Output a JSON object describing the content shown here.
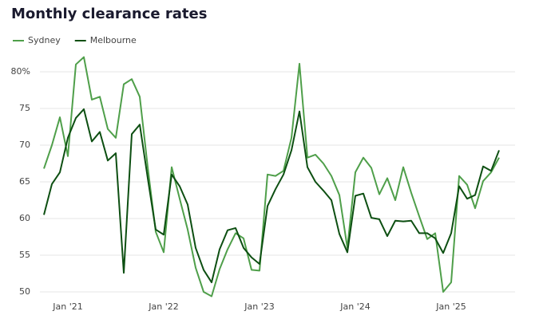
{
  "chart_data": {
    "type": "line",
    "title": "Monthly clearance rates",
    "categories": [
      null,
      null,
      null,
      "Jan '21",
      null,
      null,
      null,
      null,
      null,
      null,
      null,
      null,
      null,
      null,
      null,
      "Jan '22",
      null,
      null,
      null,
      null,
      null,
      null,
      null,
      null,
      null,
      null,
      null,
      "Jan '23",
      null,
      null,
      null,
      null,
      null,
      null,
      null,
      null,
      null,
      null,
      null,
      "Jan '24",
      null,
      null,
      null,
      null,
      null,
      null,
      null,
      null,
      null,
      null,
      null,
      "Jan '25",
      null,
      null,
      null,
      null,
      null,
      null
    ],
    "series": [
      {
        "name": "Sydney",
        "color": "#4f9f4a",
        "values": [
          66.8,
          70,
          73.8,
          68.5,
          81,
          82,
          76.2,
          76.6,
          72.2,
          71,
          78.3,
          79,
          76.6,
          67,
          58.2,
          55.4,
          67,
          62.7,
          58.5,
          53.3,
          50,
          49.4,
          53.1,
          55.8,
          58,
          57.3,
          53,
          52.9,
          66,
          65.8,
          66.5,
          71,
          81.1,
          68.3,
          68.7,
          67.5,
          65.8,
          63.2,
          56,
          66.3,
          68.3,
          66.9,
          63.3,
          65.5,
          62.5,
          67,
          63.5,
          60.3,
          57.2,
          58,
          50,
          51.3,
          65.8,
          64.6,
          61.4,
          65.1,
          66.3,
          68.3
        ]
      },
      {
        "name": "Melbourne",
        "color": "#0d4f12",
        "values": [
          60.5,
          64.7,
          66.3,
          71,
          73.7,
          74.9,
          70.5,
          71.8,
          67.9,
          68.9,
          52.6,
          71.5,
          72.8,
          65.5,
          58.5,
          57.8,
          66,
          64.4,
          61.9,
          56,
          53,
          51.3,
          55.8,
          58.4,
          58.7,
          56,
          54.7,
          53.8,
          61.7,
          64,
          66,
          69.3,
          74.6,
          67,
          65,
          63.8,
          62.5,
          57.9,
          55.4,
          63.1,
          63.4,
          60.1,
          59.9,
          57.6,
          59.7,
          59.6,
          59.7,
          58,
          58,
          57.3,
          55.3,
          58,
          64.4,
          62.7,
          63.2,
          67.1,
          66.5,
          69.3
        ]
      }
    ],
    "ylim": [
      48,
      83
    ],
    "yticks": [
      50,
      55,
      60,
      65,
      70,
      75,
      {
        "value": 80,
        "label": "80%"
      }
    ],
    "grid": true,
    "legend": "top-left"
  }
}
